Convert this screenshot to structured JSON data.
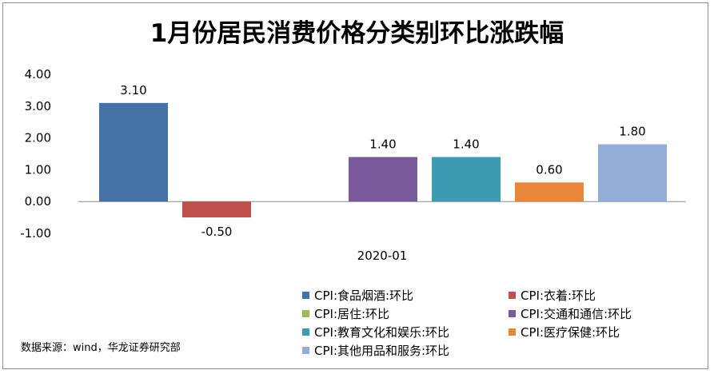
{
  "chart_data": {
    "type": "bar",
    "title": "1月份居民消费价格分类别环比涨跌幅",
    "categories": [
      "2020-01"
    ],
    "yticks": [
      "4.00",
      "3.00",
      "2.00",
      "1.00",
      "0.00",
      "-1.00"
    ],
    "ylim": [
      -1,
      4
    ],
    "grid": false,
    "legend_position": "bottom",
    "series": [
      {
        "name": "CPI:食品烟酒:环比",
        "value": 3.1,
        "label": "3.10",
        "color": "#4472A8"
      },
      {
        "name": "CPI:衣着:环比",
        "value": -0.5,
        "label": "-0.50",
        "color": "#C0504D"
      },
      {
        "name": "CPI:居住:环比",
        "value": null,
        "label": "",
        "color": "#9BBB59"
      },
      {
        "name": "CPI:交通和通信:环比",
        "value": 1.4,
        "label": "1.40",
        "color": "#7A5A9C"
      },
      {
        "name": "CPI:教育文化和娱乐:环比",
        "value": 1.4,
        "label": "1.40",
        "color": "#3C9CB2"
      },
      {
        "name": "CPI:医疗保健:环比",
        "value": 0.6,
        "label": "0.60",
        "color": "#E8873A"
      },
      {
        "name": "CPI:其他用品和服务:环比",
        "value": 1.8,
        "label": "1.80",
        "color": "#94ADD6"
      }
    ]
  },
  "source": "数据来源：wind，华龙证券研究部"
}
